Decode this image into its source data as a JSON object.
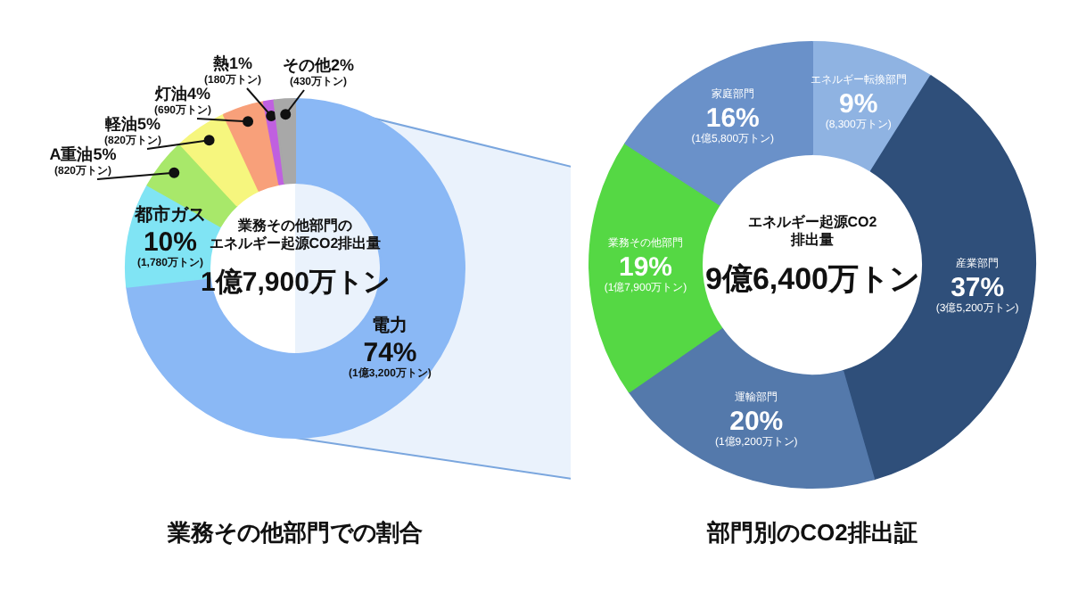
{
  "chart_data": [
    {
      "type": "donut",
      "title": "業務その他部門での割合",
      "annotations": [
        "業務その他部門の",
        "エネルギー起源CO2排出量",
        "1億7,900万トン"
      ],
      "categories": [
        "電力",
        "都市ガス",
        "A重油",
        "軽油",
        "灯油",
        "熱",
        "その他"
      ],
      "values": [
        74,
        10,
        5,
        5,
        4,
        1,
        2
      ],
      "colors": [
        "#8ab8f5",
        "#80e4f4",
        "#a8e86a",
        "#f6f67e",
        "#f8a07a",
        "#c060e0",
        "#a8a8a8"
      ],
      "value_labels": [
        "74%\n(1億3,200万トン)",
        "10%\n(1,780万トン)",
        "5%\n(820万トン)",
        "5%\n(820万トン)",
        "4%\n(690万トン)",
        "1%\n(180万トン)",
        "2%\n(430万トン)"
      ]
    },
    {
      "type": "donut",
      "title": "部門別のCO2排出証",
      "annotations": [
        "エネルギー起源CO2",
        "排出量",
        "9億6,400万トン"
      ],
      "categories": [
        "エネルギー転換部門",
        "産業部門",
        "運輸部門",
        "業務その他部門",
        "家庭部門"
      ],
      "values": [
        9,
        37,
        20,
        19,
        16
      ],
      "colors": [
        "#8fb3e2",
        "#2f4f7a",
        "#5479ab",
        "#55d844",
        "#6a91c9"
      ],
      "value_labels": [
        "9%\n(8,300万トン)",
        "37%\n(3億5,200万トン)",
        "20%\n(1億9,200万トン)",
        "19%\n(1億7,900万トン)",
        "16%\n(1億5,800万トン)"
      ]
    }
  ]
}
